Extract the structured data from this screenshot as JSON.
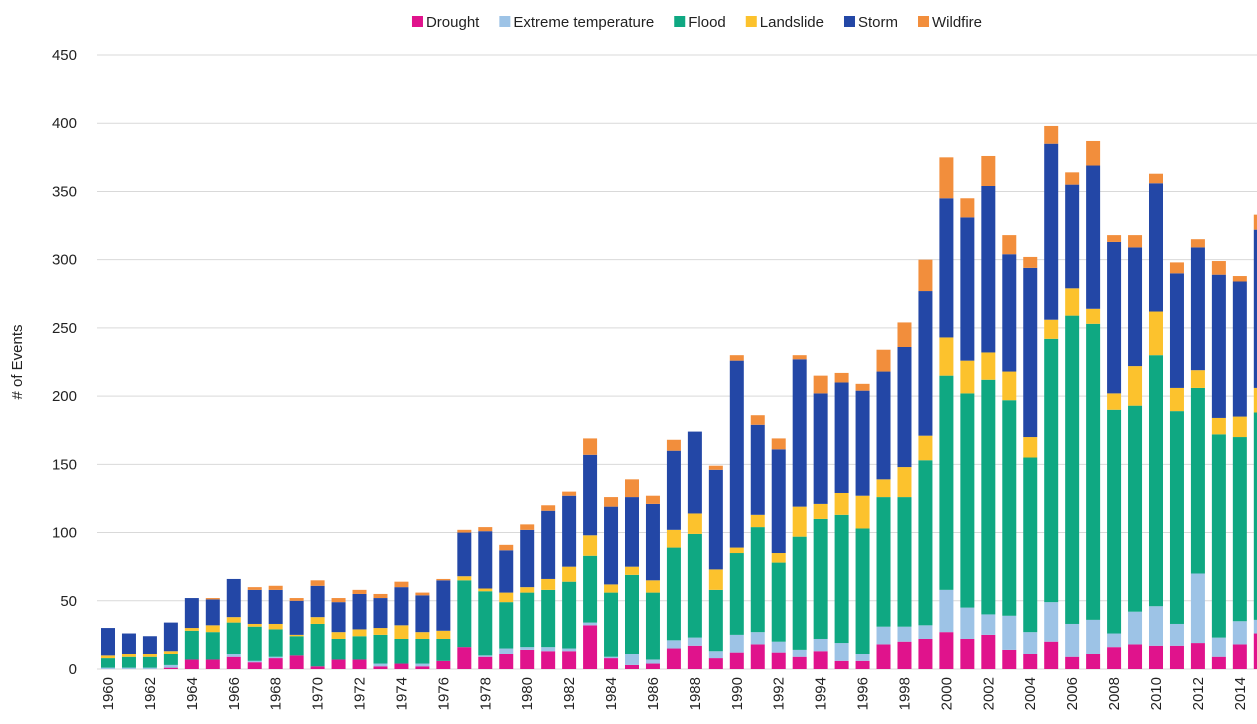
{
  "chart_data": {
    "type": "stacked_bar",
    "y_axis_label": "# of Events",
    "legend": "top",
    "grid": true,
    "ylim": [
      0,
      450
    ],
    "yticks": [
      0,
      50,
      100,
      150,
      200,
      250,
      300,
      350,
      400,
      450
    ],
    "categories": [
      "1960",
      null,
      "1962",
      null,
      "1964",
      null,
      "1966",
      null,
      "1968",
      null,
      "1970",
      null,
      "1972",
      null,
      "1974",
      null,
      "1976",
      null,
      "1978",
      null,
      "1980",
      null,
      "1982",
      null,
      "1984",
      null,
      "1986",
      null,
      "1988",
      null,
      "1990",
      null,
      "1992",
      null,
      "1994",
      null,
      "1996",
      null,
      "1998",
      null,
      "2000",
      null,
      "2002",
      null,
      "2004",
      null,
      "2006",
      null,
      "2008",
      null,
      "2010",
      null,
      "2012",
      null,
      "2014",
      null
    ],
    "series": [
      {
        "name": "Drought",
        "color": "#e0138c",
        "values": [
          0,
          0,
          0,
          1,
          7,
          7,
          9,
          5,
          8,
          10,
          2,
          7,
          7,
          2,
          4,
          2,
          6,
          16,
          9,
          11,
          14,
          13,
          13,
          32,
          8,
          3,
          4,
          15,
          17,
          8,
          12,
          18,
          12,
          9,
          13,
          6,
          6,
          18,
          20,
          22,
          27,
          22,
          25,
          14,
          11,
          20,
          9,
          11,
          16,
          18,
          17,
          17,
          19,
          9,
          18,
          26
        ]
      },
      {
        "name": "Extreme temperature",
        "color": "#9dc3e6",
        "values": [
          1,
          1,
          1,
          2,
          0,
          0,
          2,
          1,
          1,
          0,
          0,
          0,
          0,
          2,
          0,
          2,
          0,
          0,
          1,
          4,
          2,
          3,
          2,
          2,
          1,
          8,
          3,
          6,
          6,
          5,
          13,
          9,
          8,
          5,
          9,
          13,
          5,
          13,
          11,
          10,
          31,
          23,
          15,
          25,
          16,
          29,
          24,
          25,
          10,
          24,
          29,
          16,
          51,
          14,
          17,
          10
        ]
      },
      {
        "name": "Flood",
        "color": "#0fa882",
        "values": [
          7,
          8,
          8,
          8,
          21,
          20,
          23,
          25,
          20,
          14,
          31,
          15,
          17,
          21,
          18,
          18,
          16,
          49,
          47,
          34,
          40,
          42,
          49,
          49,
          47,
          58,
          49,
          68,
          76,
          45,
          60,
          77,
          58,
          83,
          88,
          94,
          92,
          95,
          95,
          121,
          157,
          157,
          172,
          158,
          128,
          193,
          226,
          217,
          164,
          151,
          184,
          156,
          136,
          149,
          135,
          152
        ]
      },
      {
        "name": "Landslide",
        "color": "#fcc22d",
        "values": [
          2,
          2,
          2,
          2,
          2,
          5,
          4,
          2,
          4,
          1,
          5,
          5,
          5,
          5,
          10,
          5,
          6,
          3,
          2,
          7,
          4,
          8,
          11,
          15,
          6,
          6,
          9,
          13,
          15,
          15,
          4,
          9,
          7,
          22,
          11,
          16,
          24,
          13,
          22,
          18,
          28,
          24,
          20,
          21,
          15,
          14,
          20,
          11,
          12,
          29,
          32,
          17,
          13,
          12,
          15,
          18
        ]
      },
      {
        "name": "Storm",
        "color": "#2347a6",
        "values": [
          20,
          15,
          13,
          21,
          22,
          19,
          28,
          25,
          25,
          25,
          23,
          22,
          26,
          22,
          28,
          27,
          37,
          32,
          42,
          31,
          42,
          50,
          52,
          59,
          57,
          51,
          56,
          58,
          60,
          73,
          137,
          66,
          76,
          108,
          81,
          81,
          77,
          79,
          88,
          106,
          102,
          105,
          122,
          86,
          124,
          129,
          76,
          105,
          111,
          87,
          94,
          84,
          90,
          105,
          99,
          116
        ]
      },
      {
        "name": "Wildfire",
        "color": "#f28e3c",
        "values": [
          0,
          0,
          0,
          0,
          0,
          1,
          0,
          2,
          3,
          2,
          4,
          3,
          3,
          3,
          4,
          2,
          1,
          2,
          3,
          4,
          4,
          4,
          3,
          12,
          7,
          13,
          6,
          8,
          0,
          3,
          4,
          7,
          8,
          3,
          13,
          7,
          5,
          16,
          18,
          23,
          30,
          14,
          22,
          14,
          8,
          13,
          9,
          18,
          5,
          9,
          7,
          8,
          6,
          10,
          4,
          11
        ]
      }
    ]
  }
}
